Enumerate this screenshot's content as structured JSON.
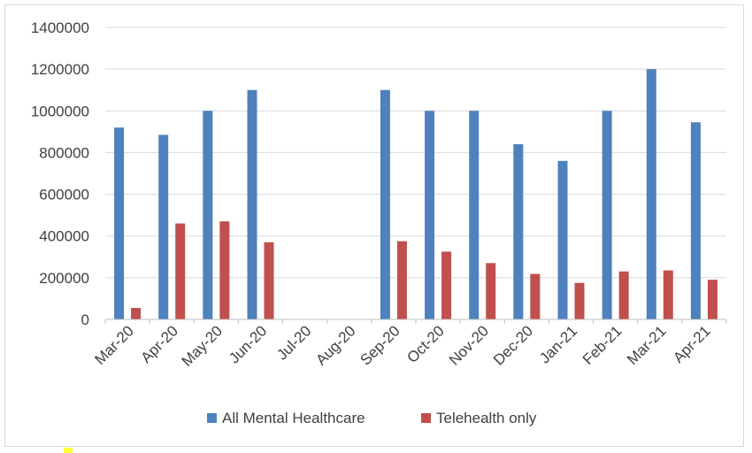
{
  "chart_data": {
    "type": "bar",
    "categories": [
      "Mar-20",
      "Apr-20",
      "May-20",
      "Jun-20",
      "Jul-20",
      "Aug-20",
      "Sep-20",
      "Oct-20",
      "Nov-20",
      "Dec-20",
      "Jan-21",
      "Feb-21",
      "Mar-21",
      "Apr-21"
    ],
    "series": [
      {
        "name": "All Mental Healthcare",
        "color": "#4f81bd",
        "values": [
          920000,
          885000,
          1000000,
          1100000,
          null,
          null,
          1100000,
          1000000,
          1000000,
          840000,
          760000,
          1000000,
          1200000,
          945000
        ]
      },
      {
        "name": "Telehealth only",
        "color": "#c0504d",
        "values": [
          55000,
          460000,
          470000,
          370000,
          null,
          null,
          375000,
          325000,
          270000,
          218000,
          175000,
          230000,
          235000,
          190000
        ]
      }
    ],
    "title": "",
    "xlabel": "",
    "ylabel": "",
    "ylim": [
      0,
      1400000
    ],
    "yticks": [
      "0",
      "200000",
      "400000",
      "600000",
      "800000",
      "1000000",
      "1200000",
      "1400000"
    ],
    "grid": true,
    "legend_position": "bottom"
  }
}
